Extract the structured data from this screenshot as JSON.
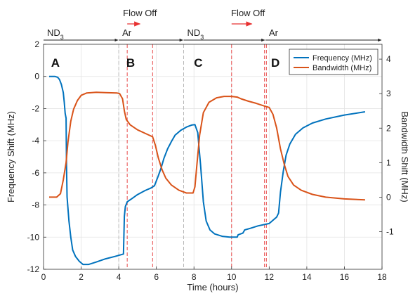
{
  "chart_data": {
    "type": "line",
    "xlabel": "Time (hours)",
    "ylabel": "Frequency Shift (MHz)",
    "y2label": "Bandwidth Shift (MHz)",
    "xlim": [
      0,
      18
    ],
    "ylim": [
      -12,
      2
    ],
    "y2lim": [
      -2.09,
      4.43
    ],
    "xticks": [
      "0",
      "2",
      "4",
      "6",
      "8",
      "10",
      "12",
      "14",
      "16",
      "18"
    ],
    "yticks": [
      "-12",
      "-10",
      "-8",
      "-6",
      "-4",
      "-2",
      "0",
      "2"
    ],
    "y2ticks": [
      "-1",
      "0",
      "1",
      "2",
      "3",
      "4"
    ],
    "grid": true,
    "legend_position": "top-right",
    "series": [
      {
        "name": "Frequency (MHz)",
        "axis": "left",
        "color": "#0072BD",
        "points": [
          [
            0.3,
            0
          ],
          [
            0.6,
            0
          ],
          [
            0.75,
            -0.05
          ],
          [
            0.85,
            -0.2
          ],
          [
            0.95,
            -0.5
          ],
          [
            1.05,
            -1.0
          ],
          [
            1.1,
            -1.6
          ],
          [
            1.15,
            -2.3
          ],
          [
            1.2,
            -2.6
          ],
          [
            1.22,
            -5.5
          ],
          [
            1.25,
            -7.5
          ],
          [
            1.35,
            -9.0
          ],
          [
            1.45,
            -10.0
          ],
          [
            1.55,
            -10.8
          ],
          [
            1.7,
            -11.2
          ],
          [
            1.9,
            -11.5
          ],
          [
            2.1,
            -11.7
          ],
          [
            2.4,
            -11.7
          ],
          [
            2.8,
            -11.55
          ],
          [
            3.3,
            -11.35
          ],
          [
            3.8,
            -11.2
          ],
          [
            4.1,
            -11.1
          ],
          [
            4.25,
            -11.05
          ],
          [
            4.3,
            -8.7
          ],
          [
            4.35,
            -8.1
          ],
          [
            4.45,
            -7.8
          ],
          [
            4.7,
            -7.6
          ],
          [
            5.0,
            -7.35
          ],
          [
            5.4,
            -7.1
          ],
          [
            5.7,
            -6.95
          ],
          [
            5.9,
            -6.8
          ],
          [
            6.1,
            -6.2
          ],
          [
            6.25,
            -5.7
          ],
          [
            6.4,
            -5.1
          ],
          [
            6.6,
            -4.5
          ],
          [
            6.8,
            -4.05
          ],
          [
            7.0,
            -3.65
          ],
          [
            7.3,
            -3.35
          ],
          [
            7.6,
            -3.15
          ],
          [
            7.9,
            -3.02
          ],
          [
            8.05,
            -3.0
          ],
          [
            8.2,
            -3.5
          ],
          [
            8.35,
            -5.5
          ],
          [
            8.5,
            -7.8
          ],
          [
            8.65,
            -9.0
          ],
          [
            8.85,
            -9.55
          ],
          [
            9.1,
            -9.8
          ],
          [
            9.5,
            -9.95
          ],
          [
            9.9,
            -10.0
          ],
          [
            10.3,
            -10.0
          ],
          [
            10.35,
            -9.85
          ],
          [
            10.6,
            -9.75
          ],
          [
            10.7,
            -9.55
          ],
          [
            11.0,
            -9.45
          ],
          [
            11.4,
            -9.3
          ],
          [
            11.8,
            -9.2
          ],
          [
            12.0,
            -9.15
          ],
          [
            12.1,
            -9.05
          ],
          [
            12.25,
            -8.9
          ],
          [
            12.4,
            -8.75
          ],
          [
            12.5,
            -8.5
          ],
          [
            12.6,
            -7.2
          ],
          [
            12.75,
            -5.9
          ],
          [
            12.9,
            -4.9
          ],
          [
            13.1,
            -4.2
          ],
          [
            13.4,
            -3.6
          ],
          [
            13.8,
            -3.2
          ],
          [
            14.3,
            -2.9
          ],
          [
            15.0,
            -2.65
          ],
          [
            16.0,
            -2.4
          ],
          [
            17.1,
            -2.2
          ]
        ]
      },
      {
        "name": "Bandwidth (MHz)",
        "axis": "right",
        "color": "#D95319",
        "points": [
          [
            0.3,
            0
          ],
          [
            0.7,
            0
          ],
          [
            0.9,
            0.1
          ],
          [
            1.05,
            0.5
          ],
          [
            1.2,
            1.0
          ],
          [
            1.3,
            1.6
          ],
          [
            1.45,
            2.2
          ],
          [
            1.6,
            2.55
          ],
          [
            1.8,
            2.8
          ],
          [
            2.0,
            2.95
          ],
          [
            2.3,
            3.02
          ],
          [
            2.8,
            3.04
          ],
          [
            3.3,
            3.03
          ],
          [
            3.9,
            3.02
          ],
          [
            4.05,
            3.0
          ],
          [
            4.2,
            2.85
          ],
          [
            4.3,
            2.5
          ],
          [
            4.4,
            2.25
          ],
          [
            4.6,
            2.1
          ],
          [
            5.0,
            1.95
          ],
          [
            5.4,
            1.85
          ],
          [
            5.8,
            1.75
          ],
          [
            5.95,
            1.5
          ],
          [
            6.1,
            1.15
          ],
          [
            6.3,
            0.8
          ],
          [
            6.5,
            0.55
          ],
          [
            6.8,
            0.35
          ],
          [
            7.2,
            0.2
          ],
          [
            7.6,
            0.12
          ],
          [
            7.95,
            0.12
          ],
          [
            8.05,
            0.3
          ],
          [
            8.15,
            0.9
          ],
          [
            8.3,
            1.8
          ],
          [
            8.5,
            2.45
          ],
          [
            8.8,
            2.75
          ],
          [
            9.2,
            2.88
          ],
          [
            9.6,
            2.92
          ],
          [
            10.0,
            2.92
          ],
          [
            10.3,
            2.9
          ],
          [
            10.5,
            2.85
          ],
          [
            10.9,
            2.78
          ],
          [
            11.3,
            2.72
          ],
          [
            11.7,
            2.65
          ],
          [
            12.0,
            2.6
          ],
          [
            12.2,
            2.4
          ],
          [
            12.4,
            2.0
          ],
          [
            12.6,
            1.4
          ],
          [
            12.8,
            0.95
          ],
          [
            13.0,
            0.6
          ],
          [
            13.3,
            0.35
          ],
          [
            13.7,
            0.2
          ],
          [
            14.3,
            0.08
          ],
          [
            15.0,
            0
          ],
          [
            16.0,
            -0.05
          ],
          [
            17.1,
            -0.08
          ]
        ]
      }
    ],
    "vlines": [
      {
        "x": 4.0,
        "color": "#b8b8b8"
      },
      {
        "x": 4.45,
        "color": "#e84a4a"
      },
      {
        "x": 5.8,
        "color": "#e84a4a"
      },
      {
        "x": 7.45,
        "color": "#b8b8b8"
      },
      {
        "x": 10.0,
        "color": "#e84a4a"
      },
      {
        "x": 11.75,
        "color": "#e84a4a"
      },
      {
        "x": 11.85,
        "color": "#e84a4a"
      }
    ],
    "phases": [
      {
        "label": "ND",
        "sub": "3",
        "start": 0,
        "end": 4.0
      },
      {
        "label": "Ar",
        "sub": "",
        "start": 4.0,
        "end": 7.45
      },
      {
        "label": "ND",
        "sub": "3",
        "start": 7.45,
        "end": 11.8
      },
      {
        "label": "Ar",
        "sub": "",
        "start": 11.8,
        "end": 18
      }
    ],
    "flow_annotations": [
      {
        "label": "Flow Off",
        "x_start": 4.45,
        "x_end": 5.8
      },
      {
        "label": "Flow Off",
        "x_start": 10.0,
        "x_end": 11.75
      }
    ],
    "region_labels": [
      {
        "label": "A",
        "x": 0.4
      },
      {
        "label": "B",
        "x": 4.4
      },
      {
        "label": "C",
        "x": 8.0
      },
      {
        "label": "D",
        "x": 12.1
      }
    ]
  }
}
